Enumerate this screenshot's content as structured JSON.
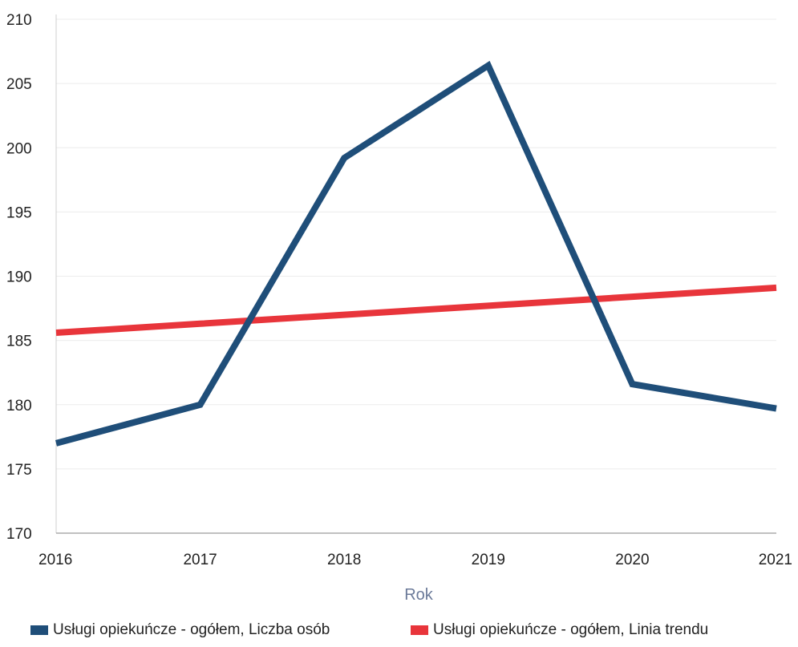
{
  "chart_data": {
    "type": "line",
    "x": [
      "2016",
      "2017",
      "2018",
      "2019",
      "2020",
      "2021"
    ],
    "series": [
      {
        "name": "Usługi opiekuńcze - ogółem, Liczba osób",
        "color": "#1f4e79",
        "values": [
          177,
          180,
          199.2,
          206.4,
          181.6,
          179.7
        ]
      },
      {
        "name": "Usługi opiekuńcze - ogółem, Linia trendu",
        "color": "#e8353b",
        "values": [
          185.6,
          186.3,
          187.0,
          187.7,
          188.4,
          189.1
        ]
      }
    ],
    "xlabel": "Rok",
    "ylabel": "",
    "ylim": [
      170,
      210
    ],
    "yticks": [
      "170",
      "175",
      "180",
      "185",
      "190",
      "195",
      "200",
      "205",
      "210"
    ],
    "grid": true,
    "legend_position": "bottom"
  }
}
